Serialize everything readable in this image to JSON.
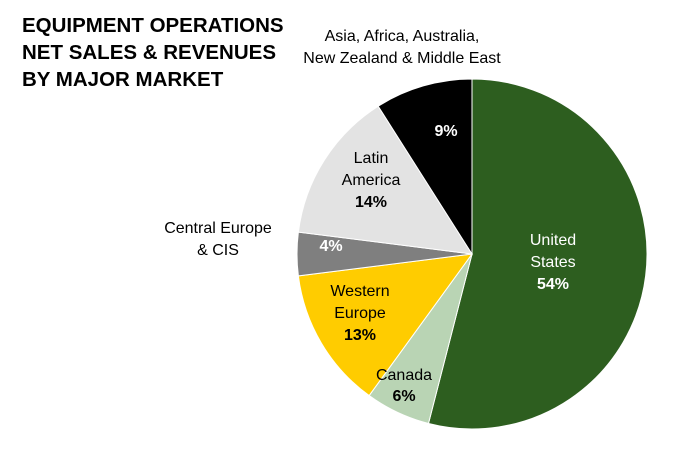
{
  "chart_data": {
    "type": "pie",
    "title": [
      "EQUIPMENT OPERATIONS",
      "NET SALES & REVENUES",
      "BY MAJOR MARKET"
    ],
    "unit": "%",
    "slices": [
      {
        "name": [
          "United",
          "States"
        ],
        "value": 54,
        "color": "#2d5e1f",
        "label_color": "#ffffff"
      },
      {
        "name": [
          "Canada"
        ],
        "value": 6,
        "color": "#b9d4b4",
        "label_color": "#000000"
      },
      {
        "name": [
          "Western",
          "Europe"
        ],
        "value": 13,
        "color": "#ffcc00",
        "label_color": "#000000"
      },
      {
        "name": [
          "Central Europe",
          "& CIS"
        ],
        "value": 4,
        "color": "#7f7f7f",
        "label_color": "#ffffff"
      },
      {
        "name": [
          "Latin",
          "America"
        ],
        "value": 14,
        "color": "#e3e3e3",
        "label_color": "#000000"
      },
      {
        "name": [
          "Asia, Africa, Australia,",
          "New Zealand & Middle East"
        ],
        "value": 9,
        "color": "#000000",
        "label_color": "#ffffff"
      }
    ]
  }
}
